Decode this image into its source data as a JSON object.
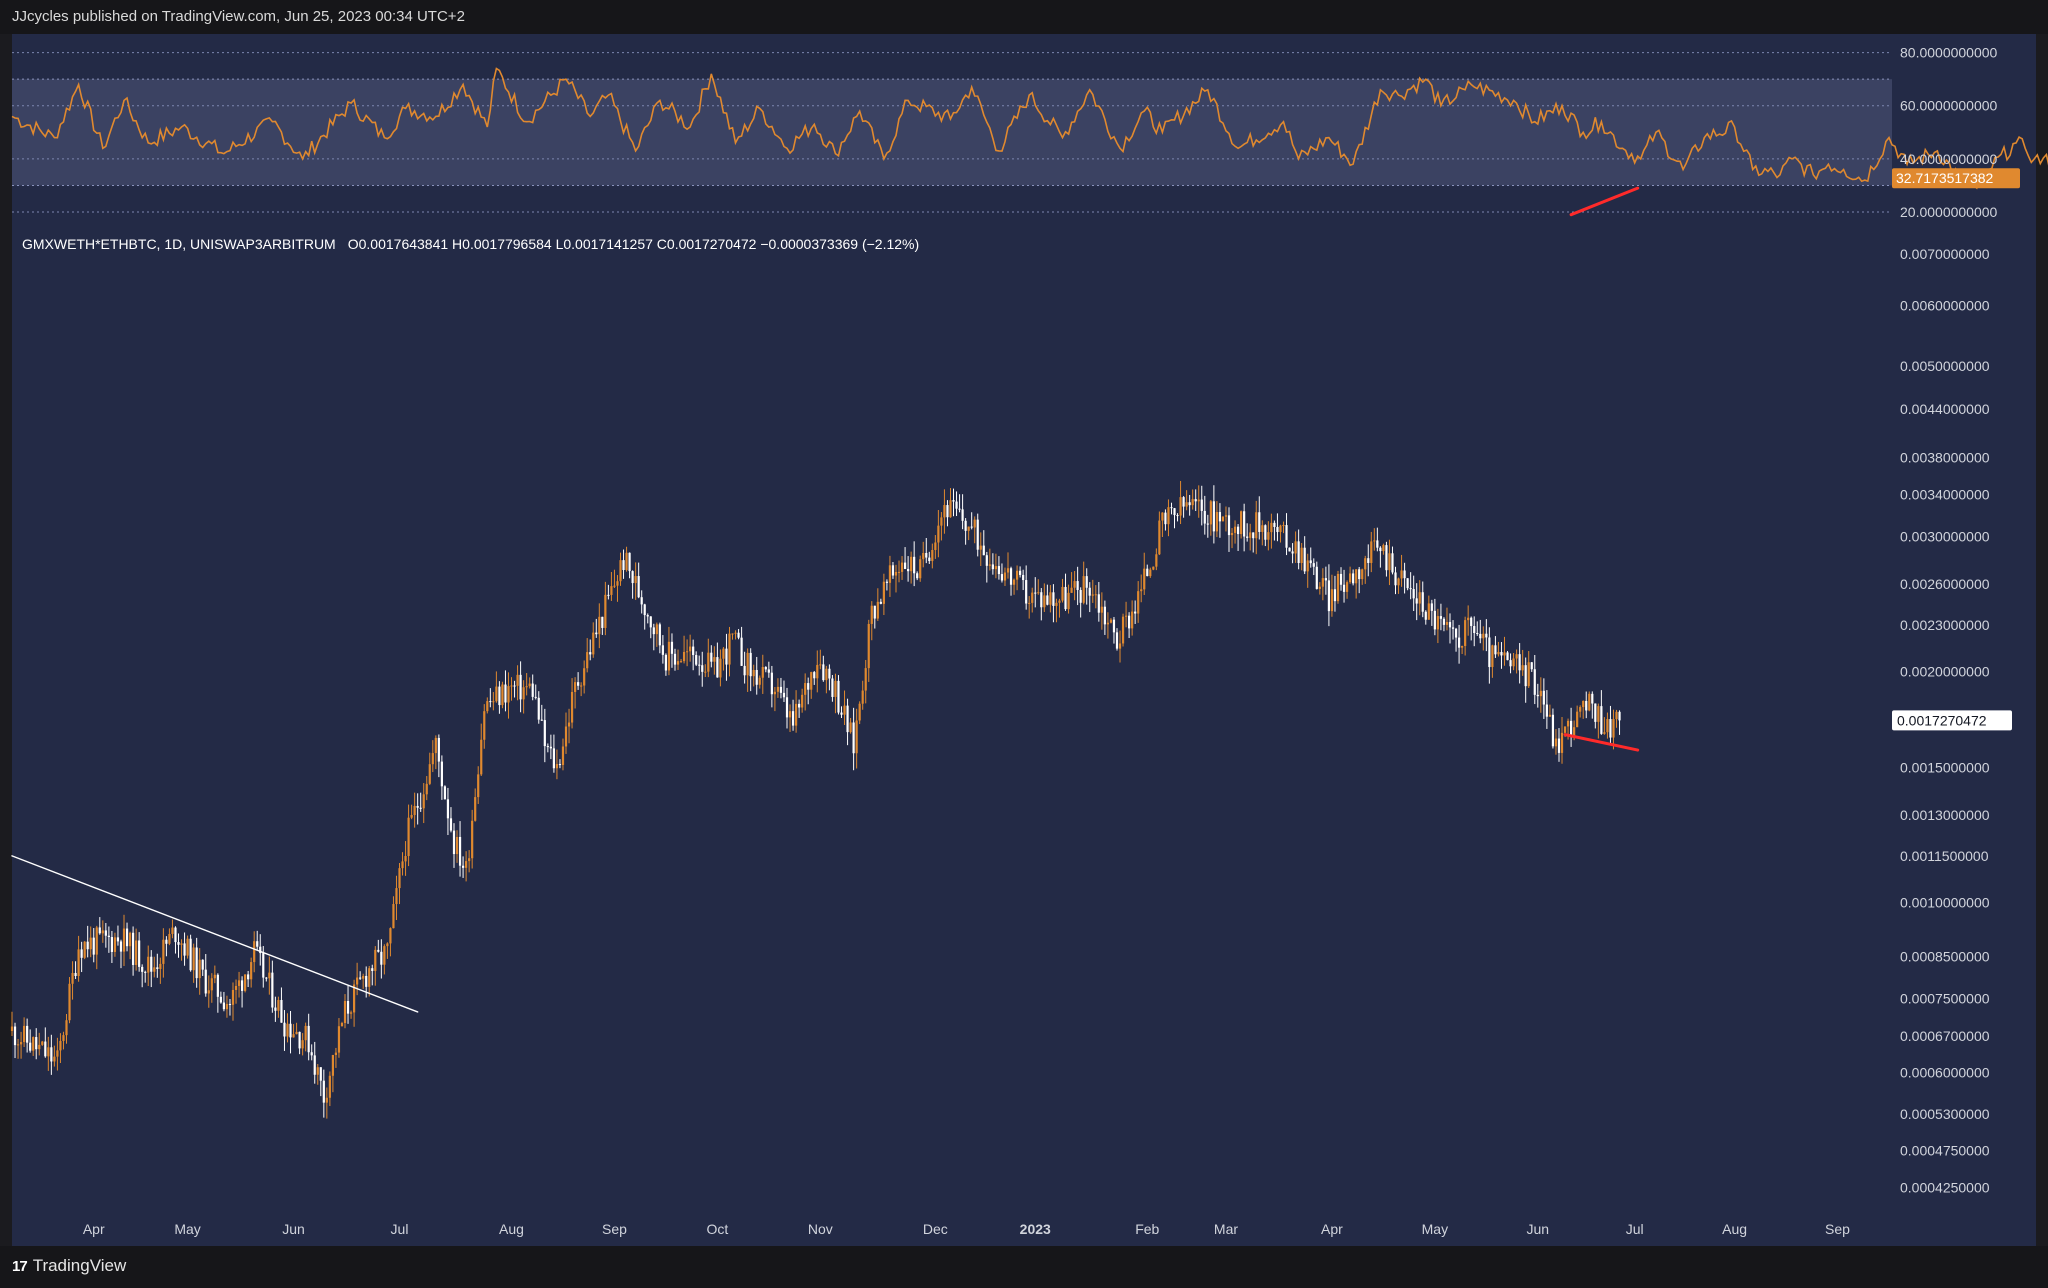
{
  "header": {
    "published": "JJcycles published on TradingView.com, Jun 25, 2023 00:34 UTC+2"
  },
  "footer": {
    "brand": "TradingView",
    "brand_mark": "17"
  },
  "colors": {
    "rsi_line": "#e0892f",
    "band": "#3f4667",
    "bull": "#e0892f",
    "bear": "#ffffff",
    "annotation": "#ff2a2a",
    "panel": "#232a46"
  },
  "chart_data": [
    {
      "type": "line",
      "indicator": "RSI",
      "yticks": [
        "80.0000000000",
        "60.0000000000",
        "40.0000000000",
        "20.0000000000"
      ],
      "ytick_values": [
        80,
        60,
        40,
        20
      ],
      "ylim": [
        17,
        87
      ],
      "band": [
        30,
        70
      ],
      "current_label": "32.7173517382",
      "current_value": 32.717,
      "series": [
        {
          "x_days": [
            0,
            14,
            22,
            30,
            37,
            45,
            56,
            70,
            86,
            96,
            112,
            123,
            130,
            140,
            149,
            157,
            160,
            170,
            183,
            191,
            197,
            206,
            214,
            224,
            231,
            239,
            247,
            256,
            265,
            272,
            280,
            288,
            296,
            310,
            317,
            326,
            336,
            347,
            356,
            366,
            374,
            380,
            395,
            405,
            420,
            425,
            435,
            443,
            452,
            458,
            467,
            472,
            480,
            482,
            496,
            503,
            512,
            519,
            525,
            532,
            538,
            543,
            552,
            559,
            569,
            575,
            584,
            588,
            595,
            600,
            605,
            612,
            620,
            626,
            636,
            643,
            649,
            653,
            662,
            665,
            668,
            677,
            689
          ],
          "values": [
            56,
            48,
            68,
            44,
            62,
            46,
            52,
            42,
            54,
            40,
            61,
            48,
            59,
            56,
            68,
            52,
            74,
            54,
            70,
            56,
            64,
            43,
            62,
            52,
            72,
            46,
            59,
            44,
            53,
            42,
            58,
            40,
            62,
            55,
            67,
            43,
            64,
            48,
            66,
            44,
            58,
            50,
            66,
            44,
            54,
            40,
            48,
            38,
            66,
            64,
            70,
            60,
            66,
            68,
            62,
            54,
            60,
            50,
            54,
            44,
            40,
            50,
            36,
            48,
            52,
            36,
            34,
            40,
            34,
            38,
            36,
            32,
            48,
            38,
            43,
            33,
            29,
            36,
            46,
            44,
            40,
            38,
            32.717
          ]
        }
      ]
    },
    {
      "type": "candlestick",
      "scale": "log",
      "symbol_line": "GMXWETH*ETHBTC, 1D, UNISWAP3ARBITRUM",
      "ohlc_line": "O0.0017643841  H0.0017796584  L0.0017141257  C0.0017270472  −0.0000373369 (−2.12%)",
      "yticks": [
        "0.0070000000",
        "0.0060000000",
        "0.0050000000",
        "0.0044000000",
        "0.0038000000",
        "0.0034000000",
        "0.0030000000",
        "0.0026000000",
        "0.0023000000",
        "0.0020000000",
        "0.0015000000",
        "0.0013000000",
        "0.0011500000",
        "0.0010000000",
        "0.0008500000",
        "0.0007500000",
        "0.0006700000",
        "0.0006000000",
        "0.0005300000",
        "0.0004750000",
        "0.0004250000"
      ],
      "ytick_values": [
        0.007,
        0.006,
        0.005,
        0.0044,
        0.0038,
        0.0034,
        0.003,
        0.0026,
        0.0023,
        0.002,
        0.0015,
        0.0013,
        0.00115,
        0.001,
        0.00085,
        0.00075,
        0.00067,
        0.0006,
        0.00053,
        0.000475,
        0.000425
      ],
      "ylim": [
        0.000395,
        0.0078
      ],
      "current_label": "0.0017270472",
      "current_value": 0.0017270472,
      "xticks": [
        "Apr",
        "May",
        "Jun",
        "Jul",
        "Aug",
        "Sep",
        "Oct",
        "Nov",
        "Dec",
        "2023",
        "Feb",
        "Mar",
        "Apr",
        "May",
        "Jun",
        "Jul",
        "Aug",
        "Sep"
      ],
      "xtick_days": [
        27,
        58,
        93,
        128,
        165,
        199,
        233,
        267,
        305,
        338,
        375,
        401,
        436,
        470,
        504,
        536,
        569,
        603
      ],
      "x_day_range": [
        0,
        621
      ],
      "close_points": [
        [
          0,
          0.00068
        ],
        [
          15,
          0.00062
        ],
        [
          22,
          0.00088
        ],
        [
          36,
          0.0009
        ],
        [
          46,
          0.00082
        ],
        [
          54,
          0.00092
        ],
        [
          63,
          0.0008
        ],
        [
          72,
          0.00074
        ],
        [
          80,
          0.00086
        ],
        [
          90,
          0.0007
        ],
        [
          98,
          0.00066
        ],
        [
          103,
          0.00056
        ],
        [
          110,
          0.00072
        ],
        [
          118,
          0.00082
        ],
        [
          124,
          0.00086
        ],
        [
          130,
          0.0012
        ],
        [
          140,
          0.0016
        ],
        [
          146,
          0.0012
        ],
        [
          150,
          0.0011
        ],
        [
          156,
          0.0018
        ],
        [
          164,
          0.0019
        ],
        [
          172,
          0.0019
        ],
        [
          176,
          0.0016
        ],
        [
          180,
          0.0015
        ],
        [
          186,
          0.0019
        ],
        [
          192,
          0.0022
        ],
        [
          202,
          0.0028
        ],
        [
          210,
          0.0024
        ],
        [
          216,
          0.0021
        ],
        [
          226,
          0.0021
        ],
        [
          232,
          0.002
        ],
        [
          238,
          0.0022
        ],
        [
          244,
          0.002
        ],
        [
          252,
          0.0019
        ],
        [
          258,
          0.0017
        ],
        [
          266,
          0.0021
        ],
        [
          272,
          0.0019
        ],
        [
          278,
          0.0016
        ],
        [
          284,
          0.0024
        ],
        [
          294,
          0.0028
        ],
        [
          300,
          0.0027
        ],
        [
          308,
          0.0033
        ],
        [
          316,
          0.0031
        ],
        [
          324,
          0.0028
        ],
        [
          336,
          0.0025
        ],
        [
          348,
          0.0025
        ],
        [
          356,
          0.0026
        ],
        [
          365,
          0.0022
        ],
        [
          372,
          0.0025
        ],
        [
          380,
          0.0031
        ],
        [
          388,
          0.0033
        ],
        [
          396,
          0.0032
        ],
        [
          405,
          0.0031
        ],
        [
          415,
          0.0031
        ],
        [
          425,
          0.0029
        ],
        [
          435,
          0.0025
        ],
        [
          443,
          0.0027
        ],
        [
          452,
          0.0029
        ],
        [
          460,
          0.0026
        ],
        [
          468,
          0.0024
        ],
        [
          476,
          0.0022
        ],
        [
          483,
          0.0023
        ],
        [
          488,
          0.0021
        ],
        [
          500,
          0.002
        ],
        [
          505,
          0.0019
        ],
        [
          510,
          0.0016
        ],
        [
          514,
          0.0017
        ],
        [
          521,
          0.0018
        ],
        [
          527,
          0.0017
        ],
        [
          531,
          0.001727
        ]
      ],
      "annotations": [
        {
          "name": "trendline",
          "color": "#ffffff",
          "from": [
            0,
            0.00115
          ],
          "to": [
            134,
            0.00072
          ]
        },
        {
          "name": "price-divergence",
          "color": "#ff2a2a",
          "from": [
            513,
            0.001655
          ],
          "to": [
            537,
            0.00158
          ]
        },
        {
          "name": "rsi-divergence",
          "color": "#ff2a2a",
          "from": [
            515,
            19
          ],
          "to": [
            537,
            29
          ]
        }
      ]
    }
  ]
}
